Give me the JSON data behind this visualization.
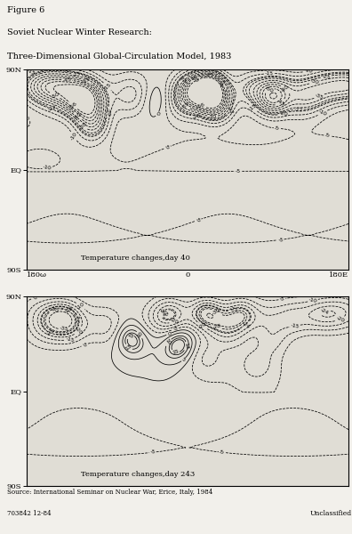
{
  "title_line1": "Figure 6",
  "title_line2": "Soviet Nuclear Winter Research:",
  "title_line3": "Three-Dimensional Global-Circulation Model, 1983",
  "panel1_label": "Temperature changes,day 40",
  "panel2_label": "Temperature changes,day 243",
  "source_text": "Source: International Seminar on Nuclear War, Erice, Italy, 1984",
  "unclassified_text": "Unclassified",
  "code_text": "703842 12-84",
  "xtick_left": "180ω",
  "xtick_center": "0",
  "xtick_right": "180E",
  "bg_color": "#f2f0eb",
  "panel_bg": "#e0ddd5"
}
